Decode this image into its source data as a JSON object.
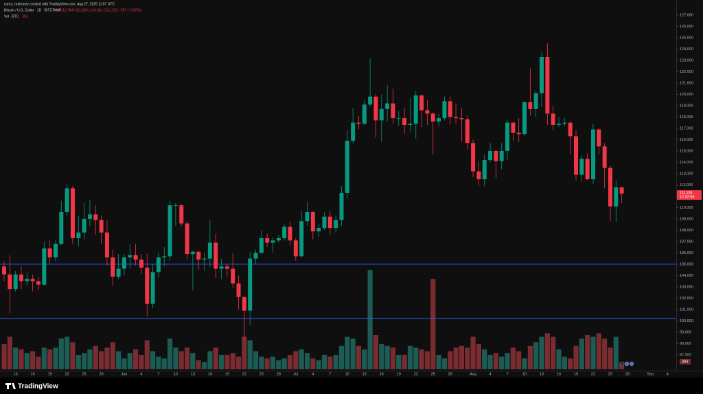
{
  "header": {
    "credit": "conor_mahoney created with TradingView.com, Aug 27, 2025 11:07 UTC",
    "symbol": "Bitcoin / U.S. Dollar · 1D · BITSTAMP",
    "ohlc": [
      "O111,784",
      "H111,826",
      "L110,381",
      "C111,231",
      "−557 (−0.50%)"
    ],
    "volume_title": "Vol · BTC",
    "volume_value": "393"
  },
  "brand": "TradingView",
  "chart_data": {
    "type": "candlestick",
    "categories": [
      null,
      null,
      "13",
      null,
      null,
      "16",
      null,
      null,
      "19",
      null,
      null,
      "22",
      null,
      null,
      "25",
      null,
      null,
      "28",
      null,
      null,
      null,
      "Jun",
      null,
      null,
      "4",
      null,
      null,
      "7",
      null,
      null,
      "10",
      null,
      null,
      "13",
      null,
      null,
      "16",
      null,
      null,
      "19",
      null,
      null,
      "22",
      null,
      null,
      "25",
      null,
      null,
      "28",
      null,
      null,
      "Jul",
      null,
      null,
      "4",
      null,
      null,
      "7",
      null,
      null,
      "10",
      null,
      null,
      "13",
      null,
      null,
      "16",
      null,
      null,
      "19",
      null,
      null,
      "22",
      null,
      null,
      "25",
      null,
      null,
      "28",
      null,
      null,
      null,
      "Aug",
      null,
      null,
      "4",
      null,
      null,
      "7",
      null,
      null,
      "10",
      null,
      null,
      "13",
      null,
      null,
      "16",
      null,
      null,
      "19",
      null,
      null,
      "22",
      null,
      null,
      "25",
      null,
      null,
      "28",
      null,
      null,
      null,
      "Sep",
      null,
      null,
      "4"
    ],
    "open": [
      104800,
      104100,
      102800,
      104100,
      103500,
      103700,
      103500,
      103200,
      106400,
      105600,
      106800,
      109600,
      111700,
      107300,
      107800,
      109000,
      109400,
      108900,
      107800,
      105600,
      103900,
      104600,
      105600,
      105800,
      105400,
      104700,
      101500,
      104300,
      105600,
      105700,
      110200,
      110200,
      108600,
      105900,
      106100,
      105400,
      105500,
      106900,
      104600,
      104800,
      104600,
      103300,
      102100,
      100900,
      105500,
      106000,
      107300,
      106900,
      107100,
      107300,
      108300,
      107100,
      105700,
      108800,
      109600,
      107900,
      108200,
      109200,
      108200,
      108900,
      111300,
      115900,
      117500,
      117400,
      119100,
      119800,
      117700,
      118700,
      119200,
      117900,
      117900,
      117300,
      117400,
      119900,
      118600,
      118300,
      117600,
      117900,
      119400,
      118000,
      117900,
      117800,
      115700,
      113200,
      112500,
      114200,
      115000,
      114100,
      115000,
      117500,
      116600,
      116500,
      119300,
      118700,
      120100,
      123300,
      118300,
      117300,
      117400,
      117500,
      116300,
      112900,
      114300,
      112500,
      116900,
      115400,
      113500,
      110100,
      111784,
      null,
      null,
      null,
      null,
      null,
      null,
      null,
      null
    ],
    "high": [
      105300,
      105800,
      104400,
      104800,
      104300,
      104100,
      103900,
      107000,
      107100,
      107100,
      110600,
      112000,
      111900,
      109300,
      110400,
      110700,
      110200,
      109300,
      108900,
      106300,
      105900,
      105900,
      106800,
      106800,
      105900,
      105900,
      105000,
      106000,
      106500,
      110600,
      110400,
      110300,
      108800,
      106200,
      106200,
      106000,
      108900,
      107700,
      105500,
      105000,
      106000,
      104000,
      102200,
      106100,
      106300,
      108000,
      107700,
      107400,
      107600,
      108500,
      108800,
      107300,
      109700,
      110500,
      109700,
      108500,
      109600,
      109700,
      109300,
      111900,
      116800,
      118800,
      118100,
      119500,
      123200,
      120000,
      120000,
      120800,
      120500,
      118500,
      118800,
      119700,
      120300,
      120000,
      119500,
      118400,
      118300,
      119800,
      119800,
      119200,
      118800,
      118100,
      116000,
      114100,
      114700,
      115700,
      115100,
      115700,
      117700,
      117600,
      117900,
      119400,
      122300,
      120300,
      123700,
      124500,
      119000,
      118000,
      117900,
      117600,
      116800,
      114600,
      114800,
      117400,
      117000,
      115700,
      113700,
      112400,
      111826,
      null,
      null,
      null,
      null,
      null,
      null,
      null,
      null
    ],
    "low": [
      103500,
      100700,
      102600,
      102800,
      103100,
      102600,
      102700,
      103100,
      105000,
      105300,
      106700,
      109300,
      106800,
      106600,
      107200,
      108400,
      107600,
      106800,
      104900,
      103100,
      103700,
      104000,
      104600,
      104900,
      104100,
      100400,
      101100,
      103800,
      104800,
      105300,
      108400,
      108400,
      105400,
      102700,
      104500,
      104400,
      104700,
      103800,
      103700,
      103900,
      102900,
      101000,
      98300,
      99600,
      105000,
      105900,
      106500,
      106000,
      106900,
      107100,
      106700,
      105300,
      105600,
      108400,
      107200,
      107400,
      108000,
      107600,
      107800,
      108400,
      110800,
      115700,
      116900,
      117300,
      118900,
      116200,
      115800,
      117600,
      117400,
      117200,
      116500,
      116700,
      116100,
      117100,
      117300,
      114700,
      117100,
      117700,
      117300,
      117400,
      115800,
      115100,
      112700,
      111900,
      111900,
      114000,
      112600,
      113400,
      114200,
      115900,
      115800,
      116300,
      118100,
      118000,
      118900,
      117300,
      116800,
      117100,
      117200,
      114700,
      112400,
      112300,
      112400,
      112100,
      114700,
      111700,
      108800,
      108700,
      110381,
      null,
      null,
      null,
      null,
      null,
      null,
      null,
      null
    ],
    "close": [
      104100,
      102800,
      104100,
      103500,
      103700,
      103500,
      103200,
      106400,
      105600,
      106800,
      109600,
      111700,
      107300,
      107800,
      109000,
      109400,
      108900,
      107800,
      105600,
      103900,
      104600,
      105600,
      105800,
      105400,
      104700,
      101500,
      104300,
      105600,
      105700,
      110200,
      110200,
      108600,
      105900,
      106100,
      105400,
      105500,
      106900,
      104600,
      104800,
      104600,
      103300,
      102100,
      100900,
      105500,
      106000,
      107300,
      106900,
      107100,
      107300,
      108300,
      107100,
      105700,
      108800,
      109600,
      107900,
      108200,
      109200,
      108200,
      108900,
      111300,
      115900,
      117500,
      117400,
      119100,
      119800,
      117700,
      118700,
      119200,
      117900,
      117900,
      117300,
      117400,
      119900,
      118600,
      118300,
      117600,
      117900,
      119400,
      118000,
      117900,
      117800,
      115700,
      113200,
      112500,
      114200,
      115000,
      114100,
      115000,
      117500,
      116600,
      116500,
      119300,
      118700,
      120100,
      123300,
      118300,
      117300,
      117400,
      117500,
      116300,
      112900,
      114300,
      112500,
      116900,
      115400,
      113500,
      110100,
      111784,
      111231,
      null,
      null,
      null,
      null,
      null,
      null,
      null,
      null
    ],
    "volume": [
      1400,
      1800,
      1200,
      1100,
      900,
      1000,
      700,
      1200,
      1100,
      1200,
      1700,
      1800,
      1500,
      800,
      900,
      1100,
      1300,
      1000,
      1200,
      1500,
      1000,
      600,
      900,
      1100,
      800,
      1600,
      1000,
      700,
      600,
      1700,
      1200,
      1000,
      1200,
      900,
      500,
      400,
      1000,
      1200,
      800,
      800,
      900,
      700,
      1800,
      1600,
      1000,
      700,
      600,
      700,
      500,
      600,
      800,
      1000,
      1100,
      900,
      600,
      500,
      800,
      700,
      800,
      1300,
      1800,
      1700,
      1300,
      1100,
      5500,
      1900,
      1400,
      1300,
      1200,
      800,
      800,
      1300,
      1200,
      1100,
      1000,
      5000,
      800,
      600,
      1000,
      1200,
      1300,
      1200,
      1800,
      1400,
      1100,
      800,
      900,
      700,
      900,
      1200,
      1000,
      600,
      1300,
      1500,
      1800,
      2000,
      1800,
      1100,
      700,
      600,
      1300,
      1700,
      1900,
      1800,
      2000,
      1700,
      1200,
      1800,
      393,
      null,
      null,
      null,
      null,
      null,
      null,
      null,
      null
    ],
    "volume_ylim": [
      0,
      5700
    ],
    "last_price_label": "111,231",
    "countdown": "12:52:58",
    "up_color": "#089981",
    "down_color": "#f23645",
    "levels": [
      105000,
      100200
    ],
    "level_color": "#2962ff",
    "ylim": [
      95600,
      128330
    ],
    "yticks": [
      {
        "value": 97000,
        "label": "97,000"
      },
      {
        "value": 98000,
        "label": "98,000"
      },
      {
        "value": 99000,
        "label": "99,000"
      },
      {
        "value": 100000,
        "label": "100,000"
      },
      {
        "value": 101000,
        "label": "101,000"
      },
      {
        "value": 102000,
        "label": "102,000"
      },
      {
        "value": 103000,
        "label": "103,000"
      },
      {
        "value": 104000,
        "label": "104,000"
      },
      {
        "value": 105000,
        "label": "105,000"
      },
      {
        "value": 106000,
        "label": "106,000"
      },
      {
        "value": 107000,
        "label": "107,000"
      },
      {
        "value": 108000,
        "label": "108,000"
      },
      {
        "value": 109000,
        "label": "109,000"
      },
      {
        "value": 110000,
        "label": "110,000"
      },
      {
        "value": 111000,
        "label": "111,000"
      },
      {
        "value": 112000,
        "label": "112,000"
      },
      {
        "value": 113000,
        "label": "113,000"
      },
      {
        "value": 114000,
        "label": "114,000"
      },
      {
        "value": 115000,
        "label": "115,000"
      },
      {
        "value": 116000,
        "label": "116,000"
      },
      {
        "value": 117000,
        "label": "117,000"
      },
      {
        "value": 118000,
        "label": "118,000"
      },
      {
        "value": 119000,
        "label": "119,000"
      },
      {
        "value": 120000,
        "label": "120,000"
      },
      {
        "value": 121000,
        "label": "121,000"
      },
      {
        "value": 122000,
        "label": "122,000"
      },
      {
        "value": 123000,
        "label": "123,000"
      },
      {
        "value": 124000,
        "label": "124,000"
      },
      {
        "value": 125000,
        "label": "125,000"
      },
      {
        "value": 126000,
        "label": "126,000"
      },
      {
        "value": 127000,
        "label": "127,000"
      }
    ]
  }
}
